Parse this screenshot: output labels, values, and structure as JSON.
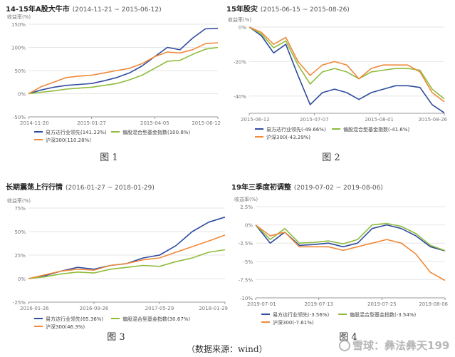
{
  "colors": {
    "s1": "#2f4c9e",
    "s2": "#8fbc3c",
    "s3": "#f08a3a",
    "grid": "#e6e6e6",
    "axis": "#999999"
  },
  "chart_data": [
    {
      "type": "line",
      "title": "14-15年A股大牛市",
      "subtitle": "(2014-11-21 ~ 2015-06-12)",
      "ylabel": "收益率(%)",
      "ylim": [
        -50,
        150
      ],
      "yticks": [
        "-50%",
        "0%",
        "50%",
        "100%",
        "150%"
      ],
      "xticks": [
        "2014-11-20",
        "2015-01-27",
        "2015-04-05",
        "2015-06-12"
      ],
      "x": [
        "2014-11-21",
        "2014-12-05",
        "2014-12-19",
        "2015-01-02",
        "2015-01-16",
        "2015-01-30",
        "2015-02-13",
        "2015-02-27",
        "2015-03-13",
        "2015-03-27",
        "2015-04-10",
        "2015-04-24",
        "2015-05-08",
        "2015-05-22",
        "2015-06-05",
        "2015-06-12"
      ],
      "series": [
        {
          "name": "易方达行业领先(141.23%)",
          "values": [
            0,
            8,
            14,
            18,
            20,
            22,
            28,
            35,
            45,
            60,
            80,
            100,
            95,
            120,
            140,
            141
          ]
        },
        {
          "name": "偏股混合型基金指数(100.8%)",
          "values": [
            0,
            3,
            6,
            10,
            12,
            14,
            18,
            22,
            30,
            40,
            55,
            70,
            72,
            85,
            96,
            100
          ]
        },
        {
          "name": "沪深300(110.28%)",
          "values": [
            0,
            15,
            25,
            35,
            38,
            40,
            45,
            50,
            55,
            65,
            80,
            90,
            88,
            95,
            108,
            110
          ]
        }
      ],
      "caption": "图 1"
    },
    {
      "type": "line",
      "title": "15年股灾",
      "subtitle": "(2015-06-15 ~ 2015-08-26)",
      "ylabel": "收益率(%)",
      "ylim": [
        -50,
        0
      ],
      "yticks": [
        "-40%",
        "-20%",
        "0%"
      ],
      "xticks": [
        "2015-06-12",
        "2015-07-07",
        "2015-08-01",
        "2015-08-26"
      ],
      "x": [
        "2015-06-15",
        "2015-06-19",
        "2015-06-24",
        "2015-06-29",
        "2015-07-03",
        "2015-07-08",
        "2015-07-13",
        "2015-07-17",
        "2015-07-22",
        "2015-07-27",
        "2015-07-31",
        "2015-08-05",
        "2015-08-10",
        "2015-08-14",
        "2015-08-19",
        "2015-08-24",
        "2015-08-26"
      ],
      "series": [
        {
          "name": "易方达行业领先(-49.66%)",
          "values": [
            0,
            -5,
            -15,
            -10,
            -28,
            -45,
            -38,
            -36,
            -38,
            -42,
            -38,
            -36,
            -34,
            -34,
            -35,
            -45,
            -49.7
          ]
        },
        {
          "name": "偏股混合型基金指数(-41.6%)",
          "values": [
            0,
            -4,
            -12,
            -8,
            -22,
            -33,
            -26,
            -24,
            -26,
            -30,
            -26,
            -25,
            -24,
            -24,
            -25,
            -36,
            -41.6
          ]
        },
        {
          "name": "沪深300(-43.29%)",
          "values": [
            0,
            -3,
            -10,
            -6,
            -20,
            -28,
            -22,
            -20,
            -22,
            -30,
            -24,
            -22,
            -22,
            -22,
            -26,
            -38,
            -43.3
          ]
        }
      ],
      "caption": "图 2"
    },
    {
      "type": "line",
      "title": "长期震荡上行行情",
      "subtitle": "(2016-01-27 ~ 2018-01-29)",
      "ylabel": "收益率(%)",
      "ylim": [
        -25,
        75
      ],
      "yticks": [
        "-25%",
        "0%",
        "25%",
        "50%",
        "75%"
      ],
      "xticks": [
        "2016-01-26",
        "2016-09-26",
        "2017-05-29",
        "2018-01-29"
      ],
      "x": [
        "2016-01-27",
        "2016-03-27",
        "2016-05-27",
        "2016-07-27",
        "2016-09-27",
        "2016-11-27",
        "2017-01-27",
        "2017-03-27",
        "2017-05-27",
        "2017-07-27",
        "2017-09-27",
        "2017-11-27",
        "2018-01-29"
      ],
      "series": [
        {
          "name": "易方达行业领先(65.36%)",
          "values": [
            0,
            3,
            8,
            12,
            10,
            14,
            16,
            22,
            25,
            35,
            50,
            60,
            65.4
          ]
        },
        {
          "name": "偏股混合型基金指数(30.67%)",
          "values": [
            0,
            2,
            5,
            7,
            6,
            10,
            12,
            14,
            13,
            18,
            22,
            28,
            30.7
          ]
        },
        {
          "name": "沪深300(46.3%)",
          "values": [
            0,
            4,
            8,
            10,
            9,
            14,
            16,
            20,
            22,
            28,
            34,
            40,
            46.3
          ]
        }
      ],
      "caption": "图 3"
    },
    {
      "type": "line",
      "title": "19年三季度初调整",
      "subtitle": "(2019-07-02 ~ 2019-08-06)",
      "ylabel": "收益率(%)",
      "ylim": [
        -10,
        2.5
      ],
      "yticks": [
        "-10%",
        "-7.5%",
        "-5%",
        "-2.5%",
        "0%",
        "2.5%"
      ],
      "xticks": [
        "2019-07-01",
        "2019-07-13",
        "2019-07-25",
        "2019-08-06"
      ],
      "x": [
        "2019-07-02",
        "2019-07-04",
        "2019-07-08",
        "2019-07-10",
        "2019-07-12",
        "2019-07-16",
        "2019-07-18",
        "2019-07-22",
        "2019-07-24",
        "2019-07-26",
        "2019-07-30",
        "2019-08-01",
        "2019-08-05",
        "2019-08-06"
      ],
      "series": [
        {
          "name": "易方达行业领先(-3.56%)",
          "values": [
            0,
            -2.5,
            -1,
            -2.8,
            -2.7,
            -2.5,
            -3,
            -2.5,
            -0.5,
            0,
            -0.5,
            -1.5,
            -3,
            -3.56
          ]
        },
        {
          "name": "偏股混合型基金指数(-3.54%)",
          "values": [
            0,
            -2,
            -0.5,
            -2.5,
            -2.4,
            -2.2,
            -2.6,
            -2,
            0,
            0.2,
            -0.2,
            -1.2,
            -2.8,
            -3.54
          ]
        },
        {
          "name": "沪深300(-7.61%)",
          "values": [
            0,
            -1.5,
            -1,
            -3,
            -3,
            -3,
            -3.5,
            -3,
            -2.5,
            -2,
            -2.5,
            -4,
            -6.5,
            -7.61
          ]
        }
      ],
      "caption": "图 4"
    }
  ],
  "source_note": "（数据来源：wind）",
  "watermark": "雪球：彝法彝天199"
}
